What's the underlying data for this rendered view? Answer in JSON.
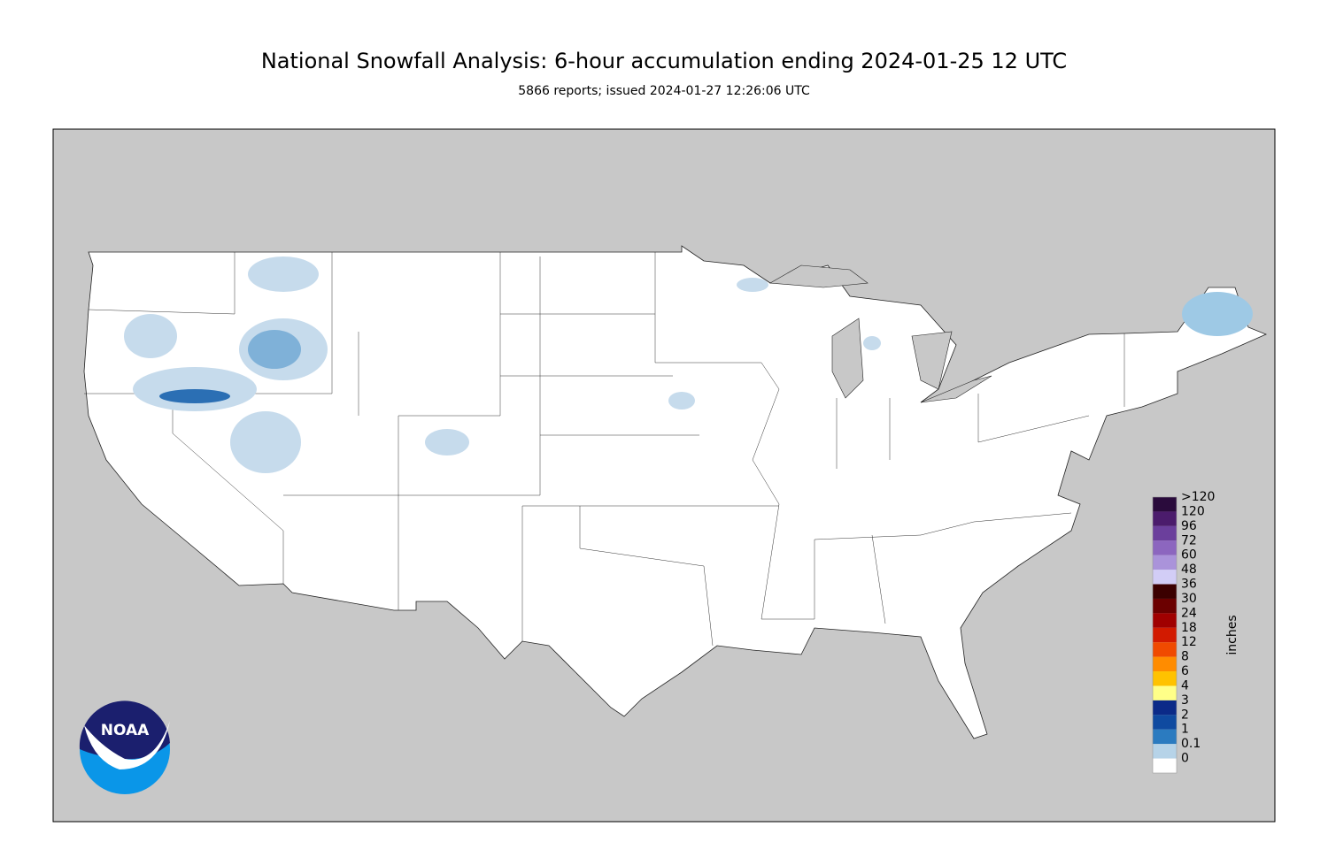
{
  "header": {
    "title": "National Snowfall Analysis: 6-hour accumulation ending 2024-01-25 12 UTC",
    "subtitle": "5866 reports; issued 2024-01-27 12:26:06 UTC"
  },
  "legend": {
    "unit": "inches",
    "items": [
      {
        "label": ">120",
        "color": "#2a0b3c"
      },
      {
        "label": "120",
        "color": "#4b1c6c"
      },
      {
        "label": "96",
        "color": "#6b3f9c"
      },
      {
        "label": "72",
        "color": "#8c66bf"
      },
      {
        "label": "60",
        "color": "#aa93da"
      },
      {
        "label": "48",
        "color": "#d2cdf6"
      },
      {
        "label": "36",
        "color": "#3b0000"
      },
      {
        "label": "30",
        "color": "#6b0000"
      },
      {
        "label": "24",
        "color": "#a00000"
      },
      {
        "label": "18",
        "color": "#d21a00"
      },
      {
        "label": "12",
        "color": "#f04a00"
      },
      {
        "label": "8",
        "color": "#ff8c00"
      },
      {
        "label": "6",
        "color": "#ffc200"
      },
      {
        "label": "4",
        "color": "#ffff88"
      },
      {
        "label": "3",
        "color": "#0b2a88"
      },
      {
        "label": "2",
        "color": "#0f4aa0"
      },
      {
        "label": "1",
        "color": "#2b7bc0"
      },
      {
        "label": "0.1",
        "color": "#b6d3e8"
      },
      {
        "label": "0",
        "color": "#ffffff"
      }
    ]
  },
  "logo": {
    "text": "NOAA"
  }
}
